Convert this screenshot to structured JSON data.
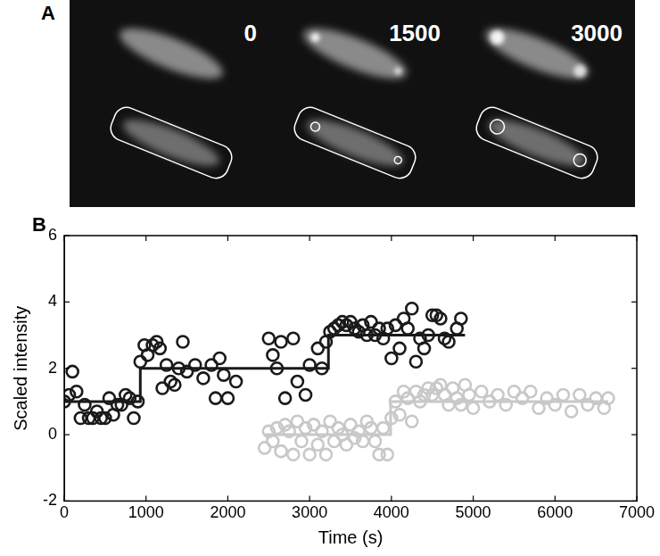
{
  "panel_a": {
    "label": "A",
    "time_labels": [
      "0",
      "1500",
      "3000"
    ]
  },
  "chart_data": {
    "type": "scatter",
    "title": "B",
    "x_label": "Time (s)",
    "y_label": "Scaled intensity",
    "xlim": [
      0,
      7000
    ],
    "xticks": [
      0,
      1000,
      2000,
      3000,
      4000,
      5000,
      6000,
      7000
    ],
    "ylim": [
      -2,
      6
    ],
    "yticks": [
      -2,
      0,
      2,
      4,
      6
    ],
    "grid": false,
    "series": [
      {
        "color": "#1a1a1a",
        "marker": "circle",
        "line_style": "none",
        "x": [
          0,
          60,
          100,
          150,
          200,
          250,
          300,
          350,
          400,
          450,
          500,
          550,
          600,
          650,
          700,
          750,
          800,
          850,
          900,
          930,
          980,
          1020,
          1080,
          1130,
          1170,
          1200,
          1250,
          1300,
          1350,
          1400,
          1450,
          1500,
          1600,
          1700,
          1800,
          1850,
          1900,
          1950,
          2000,
          2100,
          2500,
          2550,
          2600,
          2650,
          2700,
          2800,
          2850,
          2950,
          3000,
          3100,
          3150,
          3200,
          3250,
          3300,
          3350,
          3400,
          3450,
          3500,
          3550,
          3600,
          3650,
          3700,
          3750,
          3800,
          3850,
          3900,
          3950,
          4000,
          4050,
          4100,
          4150,
          4200,
          4250,
          4300,
          4350,
          4400,
          4450,
          4500,
          4550,
          4600,
          4650,
          4700,
          4800,
          4850
        ],
        "values": [
          1.0,
          1.2,
          1.9,
          1.3,
          0.5,
          0.9,
          0.5,
          0.5,
          0.7,
          0.5,
          0.5,
          1.1,
          0.6,
          0.9,
          0.9,
          1.2,
          1.1,
          0.5,
          1.0,
          2.2,
          2.7,
          2.4,
          2.7,
          2.8,
          2.6,
          1.4,
          2.1,
          1.6,
          1.5,
          2.0,
          2.8,
          1.9,
          2.1,
          1.7,
          2.1,
          1.1,
          2.3,
          1.8,
          1.1,
          1.6,
          2.9,
          2.4,
          2.0,
          2.8,
          1.1,
          2.9,
          1.6,
          1.2,
          2.1,
          2.6,
          2.0,
          2.8,
          3.1,
          3.2,
          3.3,
          3.4,
          3.3,
          3.4,
          3.2,
          3.1,
          3.3,
          3.0,
          3.4,
          3.0,
          3.2,
          2.9,
          3.2,
          2.3,
          3.3,
          2.6,
          3.5,
          3.2,
          3.8,
          2.2,
          2.9,
          2.6,
          3.0,
          3.6,
          3.6,
          3.5,
          2.9,
          2.8,
          3.2,
          3.5
        ]
      },
      {
        "color": "#c8c8c8",
        "marker": "circle",
        "line_style": "none",
        "x": [
          2450,
          2500,
          2550,
          2600,
          2650,
          2700,
          2750,
          2800,
          2850,
          2900,
          2950,
          3000,
          3050,
          3100,
          3150,
          3200,
          3250,
          3300,
          3350,
          3400,
          3450,
          3500,
          3550,
          3600,
          3650,
          3700,
          3750,
          3800,
          3850,
          3900,
          3950,
          4000,
          4050,
          4100,
          4150,
          4200,
          4250,
          4300,
          4350,
          4400,
          4450,
          4500,
          4550,
          4600,
          4650,
          4700,
          4750,
          4800,
          4850,
          4900,
          4950,
          5000,
          5100,
          5200,
          5300,
          5400,
          5500,
          5600,
          5700,
          5800,
          5900,
          6000,
          6100,
          6200,
          6300,
          6400,
          6500,
          6600,
          6650
        ],
        "values": [
          -0.4,
          0.1,
          -0.2,
          0.2,
          -0.5,
          0.3,
          0.1,
          -0.6,
          0.4,
          -0.2,
          0.2,
          -0.6,
          0.3,
          -0.3,
          0.1,
          -0.6,
          0.4,
          -0.2,
          0.2,
          0.0,
          -0.3,
          0.3,
          -0.1,
          0.1,
          -0.2,
          0.4,
          0.2,
          -0.2,
          -0.6,
          0.2,
          -0.6,
          0.5,
          1.0,
          0.6,
          1.3,
          1.1,
          0.4,
          1.3,
          1.0,
          1.2,
          1.4,
          1.2,
          1.4,
          1.5,
          1.2,
          0.9,
          1.4,
          1.1,
          0.9,
          1.5,
          1.2,
          0.8,
          1.3,
          1.0,
          1.2,
          0.9,
          1.3,
          1.1,
          1.3,
          0.8,
          1.1,
          0.9,
          1.2,
          0.7,
          1.2,
          0.9,
          1.1,
          0.8,
          1.1
        ]
      },
      {
        "color": "#1a1a1a",
        "marker": "none",
        "line_style": "solid",
        "x": [
          0,
          930,
          930,
          3230,
          3230,
          4900
        ],
        "values": [
          1,
          1,
          2,
          2,
          3,
          3
        ]
      },
      {
        "color": "#c8c8c8",
        "marker": "none",
        "line_style": "solid",
        "x": [
          2450,
          3990,
          3990,
          6650
        ],
        "values": [
          0,
          0,
          1,
          1
        ]
      }
    ]
  }
}
